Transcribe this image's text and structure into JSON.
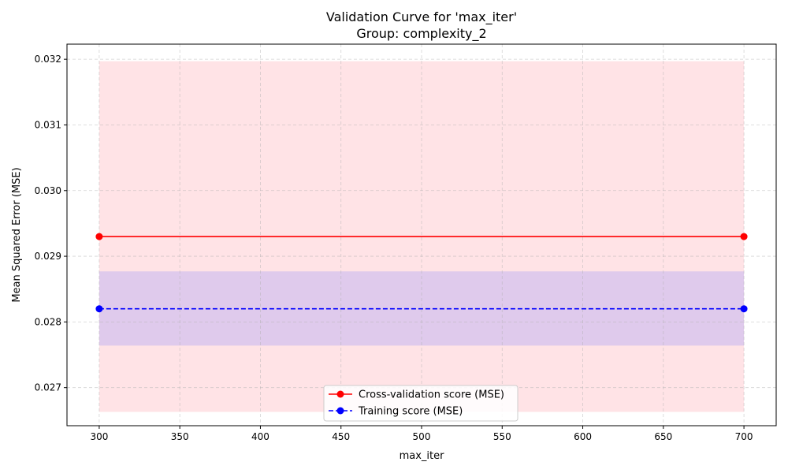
{
  "chart_data": {
    "type": "line",
    "title": "Validation Curve for 'max_iter'",
    "subtitle": "Group: complexity_2",
    "xlabel": "max_iter",
    "ylabel": "Mean Squared Error (MSE)",
    "x": [
      300,
      700
    ],
    "xlim": [
      280,
      720
    ],
    "ylim": [
      0.02642,
      0.03223
    ],
    "x_ticks": [
      300,
      350,
      400,
      450,
      500,
      550,
      600,
      650,
      700
    ],
    "y_ticks": [
      0.027,
      0.028,
      0.029,
      0.03,
      0.031,
      0.032
    ],
    "grid": true,
    "legend_position": "bottom-center",
    "series": [
      {
        "name": "Cross-validation score (MSE)",
        "values": [
          0.0293,
          0.0293
        ],
        "band_lower": [
          0.02663,
          0.02663
        ],
        "band_upper": [
          0.03197,
          0.03197
        ],
        "color": "#ff0000",
        "band_color": "#ffc0c8",
        "line_style": "solid",
        "marker": "circle"
      },
      {
        "name": "Training score (MSE)",
        "values": [
          0.0282,
          0.0282
        ],
        "band_lower": [
          0.02764,
          0.02764
        ],
        "band_upper": [
          0.02877,
          0.02877
        ],
        "color": "#0000ff",
        "band_color": "#8080ff",
        "line_style": "dashed",
        "marker": "circle"
      }
    ]
  }
}
